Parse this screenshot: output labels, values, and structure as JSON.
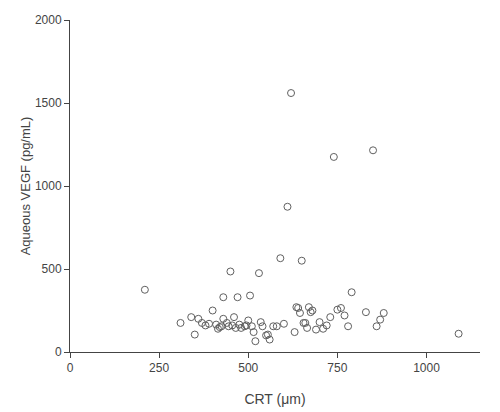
{
  "chart_data": {
    "type": "scatter",
    "x": [
      210,
      310,
      340,
      350,
      360,
      370,
      380,
      390,
      400,
      410,
      415,
      420,
      425,
      430,
      430,
      440,
      445,
      450,
      455,
      460,
      465,
      470,
      475,
      480,
      490,
      495,
      500,
      505,
      510,
      515,
      520,
      530,
      535,
      540,
      550,
      555,
      560,
      570,
      580,
      590,
      600,
      610,
      620,
      630,
      635,
      640,
      645,
      650,
      655,
      660,
      665,
      670,
      675,
      680,
      690,
      700,
      710,
      720,
      730,
      740,
      750,
      760,
      770,
      780,
      790,
      830,
      850,
      860,
      870,
      880,
      1090
    ],
    "values": [
      375,
      175,
      210,
      105,
      200,
      175,
      160,
      170,
      250,
      165,
      140,
      150,
      155,
      200,
      330,
      175,
      155,
      485,
      160,
      210,
      145,
      330,
      165,
      145,
      155,
      160,
      190,
      340,
      155,
      120,
      65,
      475,
      180,
      155,
      100,
      105,
      75,
      155,
      155,
      565,
      170,
      875,
      1560,
      120,
      270,
      265,
      235,
      550,
      175,
      175,
      145,
      270,
      240,
      250,
      135,
      180,
      140,
      160,
      210,
      1175,
      255,
      265,
      220,
      155,
      360,
      240,
      1215,
      155,
      195,
      235,
      110
    ],
    "xlabel": "CRT (μm)",
    "ylabel": "Aqueous VEGF (pg/mL)",
    "xlim": [
      0,
      1150
    ],
    "ylim": [
      0,
      2000
    ],
    "xticks": [
      0,
      250,
      500,
      750,
      1000
    ],
    "yticks": [
      0,
      500,
      1000,
      1500,
      2000
    ],
    "color": "#606060",
    "marker": "circle-open",
    "grid": false
  }
}
